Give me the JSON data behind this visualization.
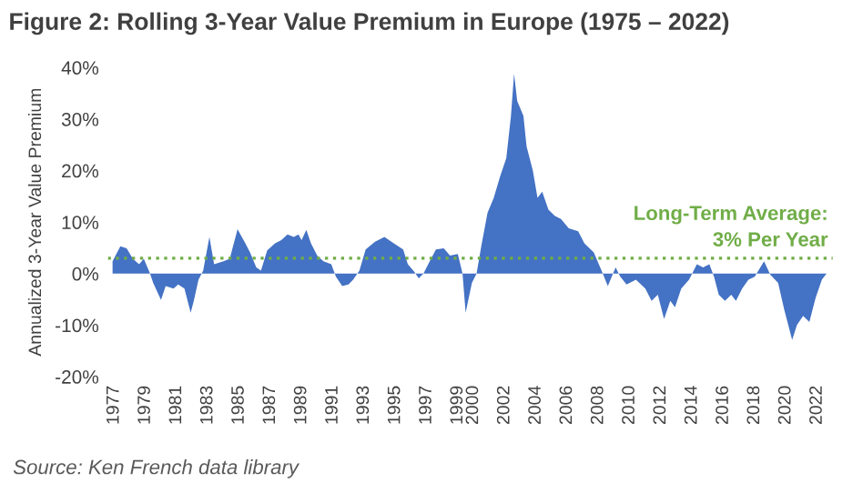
{
  "chart_data": {
    "type": "area",
    "title": "Figure 2: Rolling 3-Year Value Premium in Europe (1975 – 2022)",
    "ylabel": "Annualized 3-Year Value Premium",
    "x": [
      1976.9,
      1977.4,
      1977.8,
      1978.2,
      1978.6,
      1978.9,
      1979.3,
      1979.5,
      1980.0,
      1980.3,
      1980.8,
      1981.1,
      1981.5,
      1981.9,
      1982.1,
      1982.4,
      1982.7,
      1983.1,
      1983.4,
      1984.0,
      1984.4,
      1984.9,
      1985.4,
      1985.7,
      1986.1,
      1986.4,
      1986.8,
      1987.3,
      1987.7,
      1988.1,
      1988.5,
      1988.8,
      1989.0,
      1989.3,
      1989.6,
      1990.0,
      1990.4,
      1990.9,
      1991.2,
      1991.6,
      1992.0,
      1992.3,
      1992.7,
      1993.1,
      1993.7,
      1994.3,
      1994.9,
      1995.5,
      1995.8,
      1996.2,
      1996.5,
      1996.8,
      1997.2,
      1997.6,
      1998.1,
      1998.5,
      1999.0,
      1999.3,
      1999.5,
      1999.9,
      2000.2,
      2000.5,
      2000.9,
      2001.3,
      2001.7,
      2002.1,
      2002.4,
      2002.6,
      2002.8,
      2003.2,
      2003.4,
      2003.8,
      2004.1,
      2004.4,
      2004.8,
      2005.2,
      2005.6,
      2006.1,
      2006.7,
      2007.1,
      2007.7,
      2008.2,
      2008.6,
      2009.1,
      2009.4,
      2009.8,
      2010.4,
      2011.0,
      2011.4,
      2011.8,
      2012.2,
      2012.6,
      2012.9,
      2013.3,
      2013.8,
      2014.3,
      2014.7,
      2015.1,
      2015.4,
      2015.7,
      2016.1,
      2016.5,
      2016.8,
      2017.2,
      2017.6,
      2018.0,
      2018.6,
      2019.0,
      2019.5,
      2019.9,
      2020.4,
      2020.7,
      2021.1,
      2021.5,
      2021.9,
      2022.3,
      2022.6
    ],
    "series": [
      {
        "color": "#4472c4",
        "values": [
          2.4,
          5.3,
          4.9,
          2.9,
          1.8,
          2.9,
          0,
          -1.8,
          -5.1,
          -2.4,
          -2.9,
          -2.1,
          -2.9,
          -7.6,
          -5.3,
          -1.2,
          0.6,
          7.1,
          1.8,
          2.4,
          2.9,
          8.6,
          5.9,
          4.1,
          1.2,
          0.6,
          4.5,
          5.9,
          6.5,
          7.6,
          7.1,
          7.6,
          6.5,
          8.5,
          5.9,
          3.5,
          2.4,
          1.8,
          -0.6,
          -2.4,
          -2.1,
          -1.2,
          0.6,
          4.7,
          6.2,
          7.1,
          5.9,
          4.7,
          1.8,
          0.4,
          -0.9,
          0,
          2.4,
          4.7,
          4.9,
          3.5,
          3.8,
          0,
          -7.6,
          -1.8,
          0,
          5.3,
          11.8,
          14.7,
          18.8,
          22.4,
          30.6,
          38.8,
          33.5,
          30.6,
          24.7,
          20,
          14.7,
          15.9,
          12.4,
          11.2,
          10.6,
          8.8,
          8.2,
          5.9,
          4.1,
          0.6,
          -2.4,
          1.2,
          -0.6,
          -2.1,
          -1.2,
          -2.9,
          -5.3,
          -4.1,
          -8.8,
          -5.3,
          -6.5,
          -2.9,
          -1.2,
          1.8,
          1.2,
          1.8,
          -0.6,
          -4.1,
          -5.3,
          -4.1,
          -5.3,
          -2.9,
          -1.2,
          -0.6,
          2.4,
          -0.2,
          -1.8,
          -7.1,
          -12.9,
          -10,
          -8.2,
          -9.4,
          -4.7,
          -1.2,
          0
        ]
      }
    ],
    "xlim": [
      1976.6,
      2023.0
    ],
    "xticks": [
      1977,
      1979,
      1981,
      1983,
      1985,
      1987,
      1989,
      1991,
      1993,
      1995,
      1997,
      1999,
      2000,
      2002,
      2004,
      2006,
      2008,
      2010,
      2012,
      2014,
      2016,
      2018,
      2020,
      2022
    ],
    "ylim": [
      -20,
      40
    ],
    "yticks": [
      {
        "value": -20,
        "label": "-20%"
      },
      {
        "value": -10,
        "label": "-10%"
      },
      {
        "value": 0,
        "label": "0%"
      },
      {
        "value": 10,
        "label": "10%"
      },
      {
        "value": 20,
        "label": "20%"
      },
      {
        "value": 30,
        "label": "30%"
      },
      {
        "value": 40,
        "label": "40%"
      }
    ],
    "grid": false,
    "legend": false,
    "ref_lines": [
      {
        "axis": "y",
        "value": 3,
        "label": "Long-Term Average:\n3% Per Year",
        "color": "#70ad47",
        "line_style": "dotted"
      }
    ],
    "annotations": [
      "Source: Ken French data library"
    ]
  }
}
